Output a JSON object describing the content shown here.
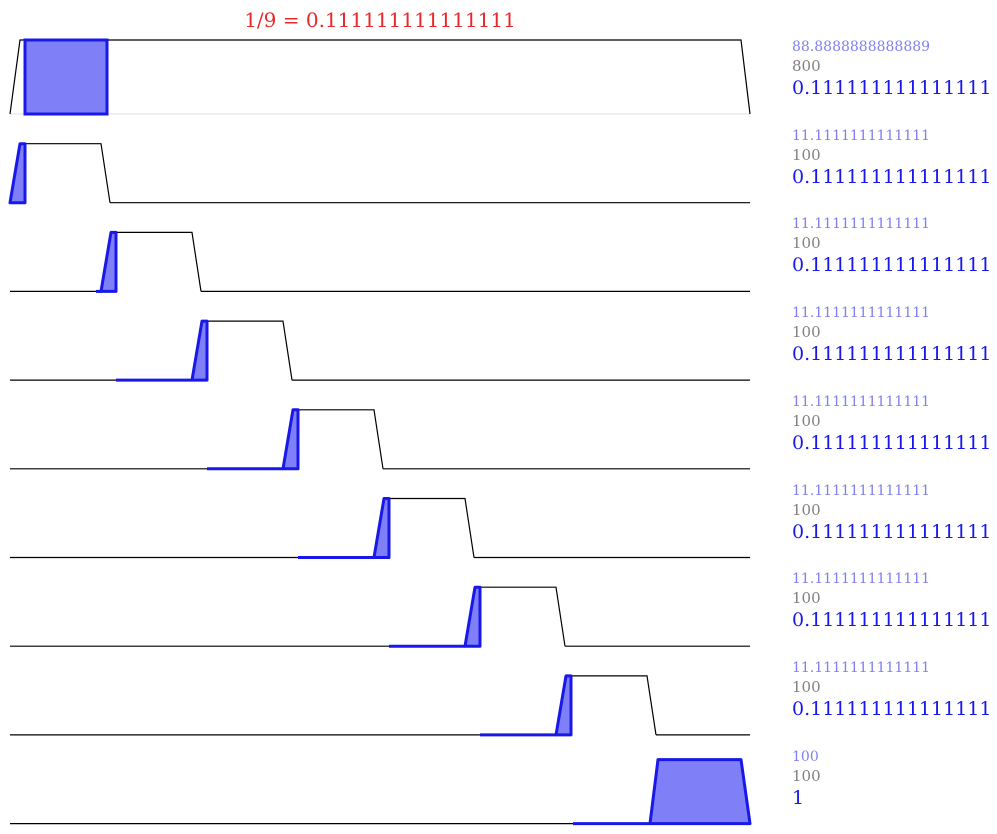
{
  "title": "1/9 = 0.111111111111111",
  "colors": {
    "title": "#e8282b",
    "accent": "#1818ea",
    "accent_light": "#7f7ff2",
    "fill": "#7f7ff7",
    "total_text": "#808080",
    "outline": "#000000",
    "baseline": "#e0e0e0"
  },
  "rows": [
    {
      "area": "88.8888888888889",
      "total": "800",
      "fraction": "0.111111111111111"
    },
    {
      "area": "11.1111111111111",
      "total": "100",
      "fraction": "0.111111111111111"
    },
    {
      "area": "11.1111111111111",
      "total": "100",
      "fraction": "0.111111111111111"
    },
    {
      "area": "11.1111111111111",
      "total": "100",
      "fraction": "0.111111111111111"
    },
    {
      "area": "11.1111111111111",
      "total": "100",
      "fraction": "0.111111111111111"
    },
    {
      "area": "11.1111111111111",
      "total": "100",
      "fraction": "0.111111111111111"
    },
    {
      "area": "11.1111111111111",
      "total": "100",
      "fraction": "0.111111111111111"
    },
    {
      "area": "11.1111111111111",
      "total": "100",
      "fraction": "0.111111111111111"
    },
    {
      "area": "100",
      "total": "100",
      "fraction": "1"
    }
  ]
}
